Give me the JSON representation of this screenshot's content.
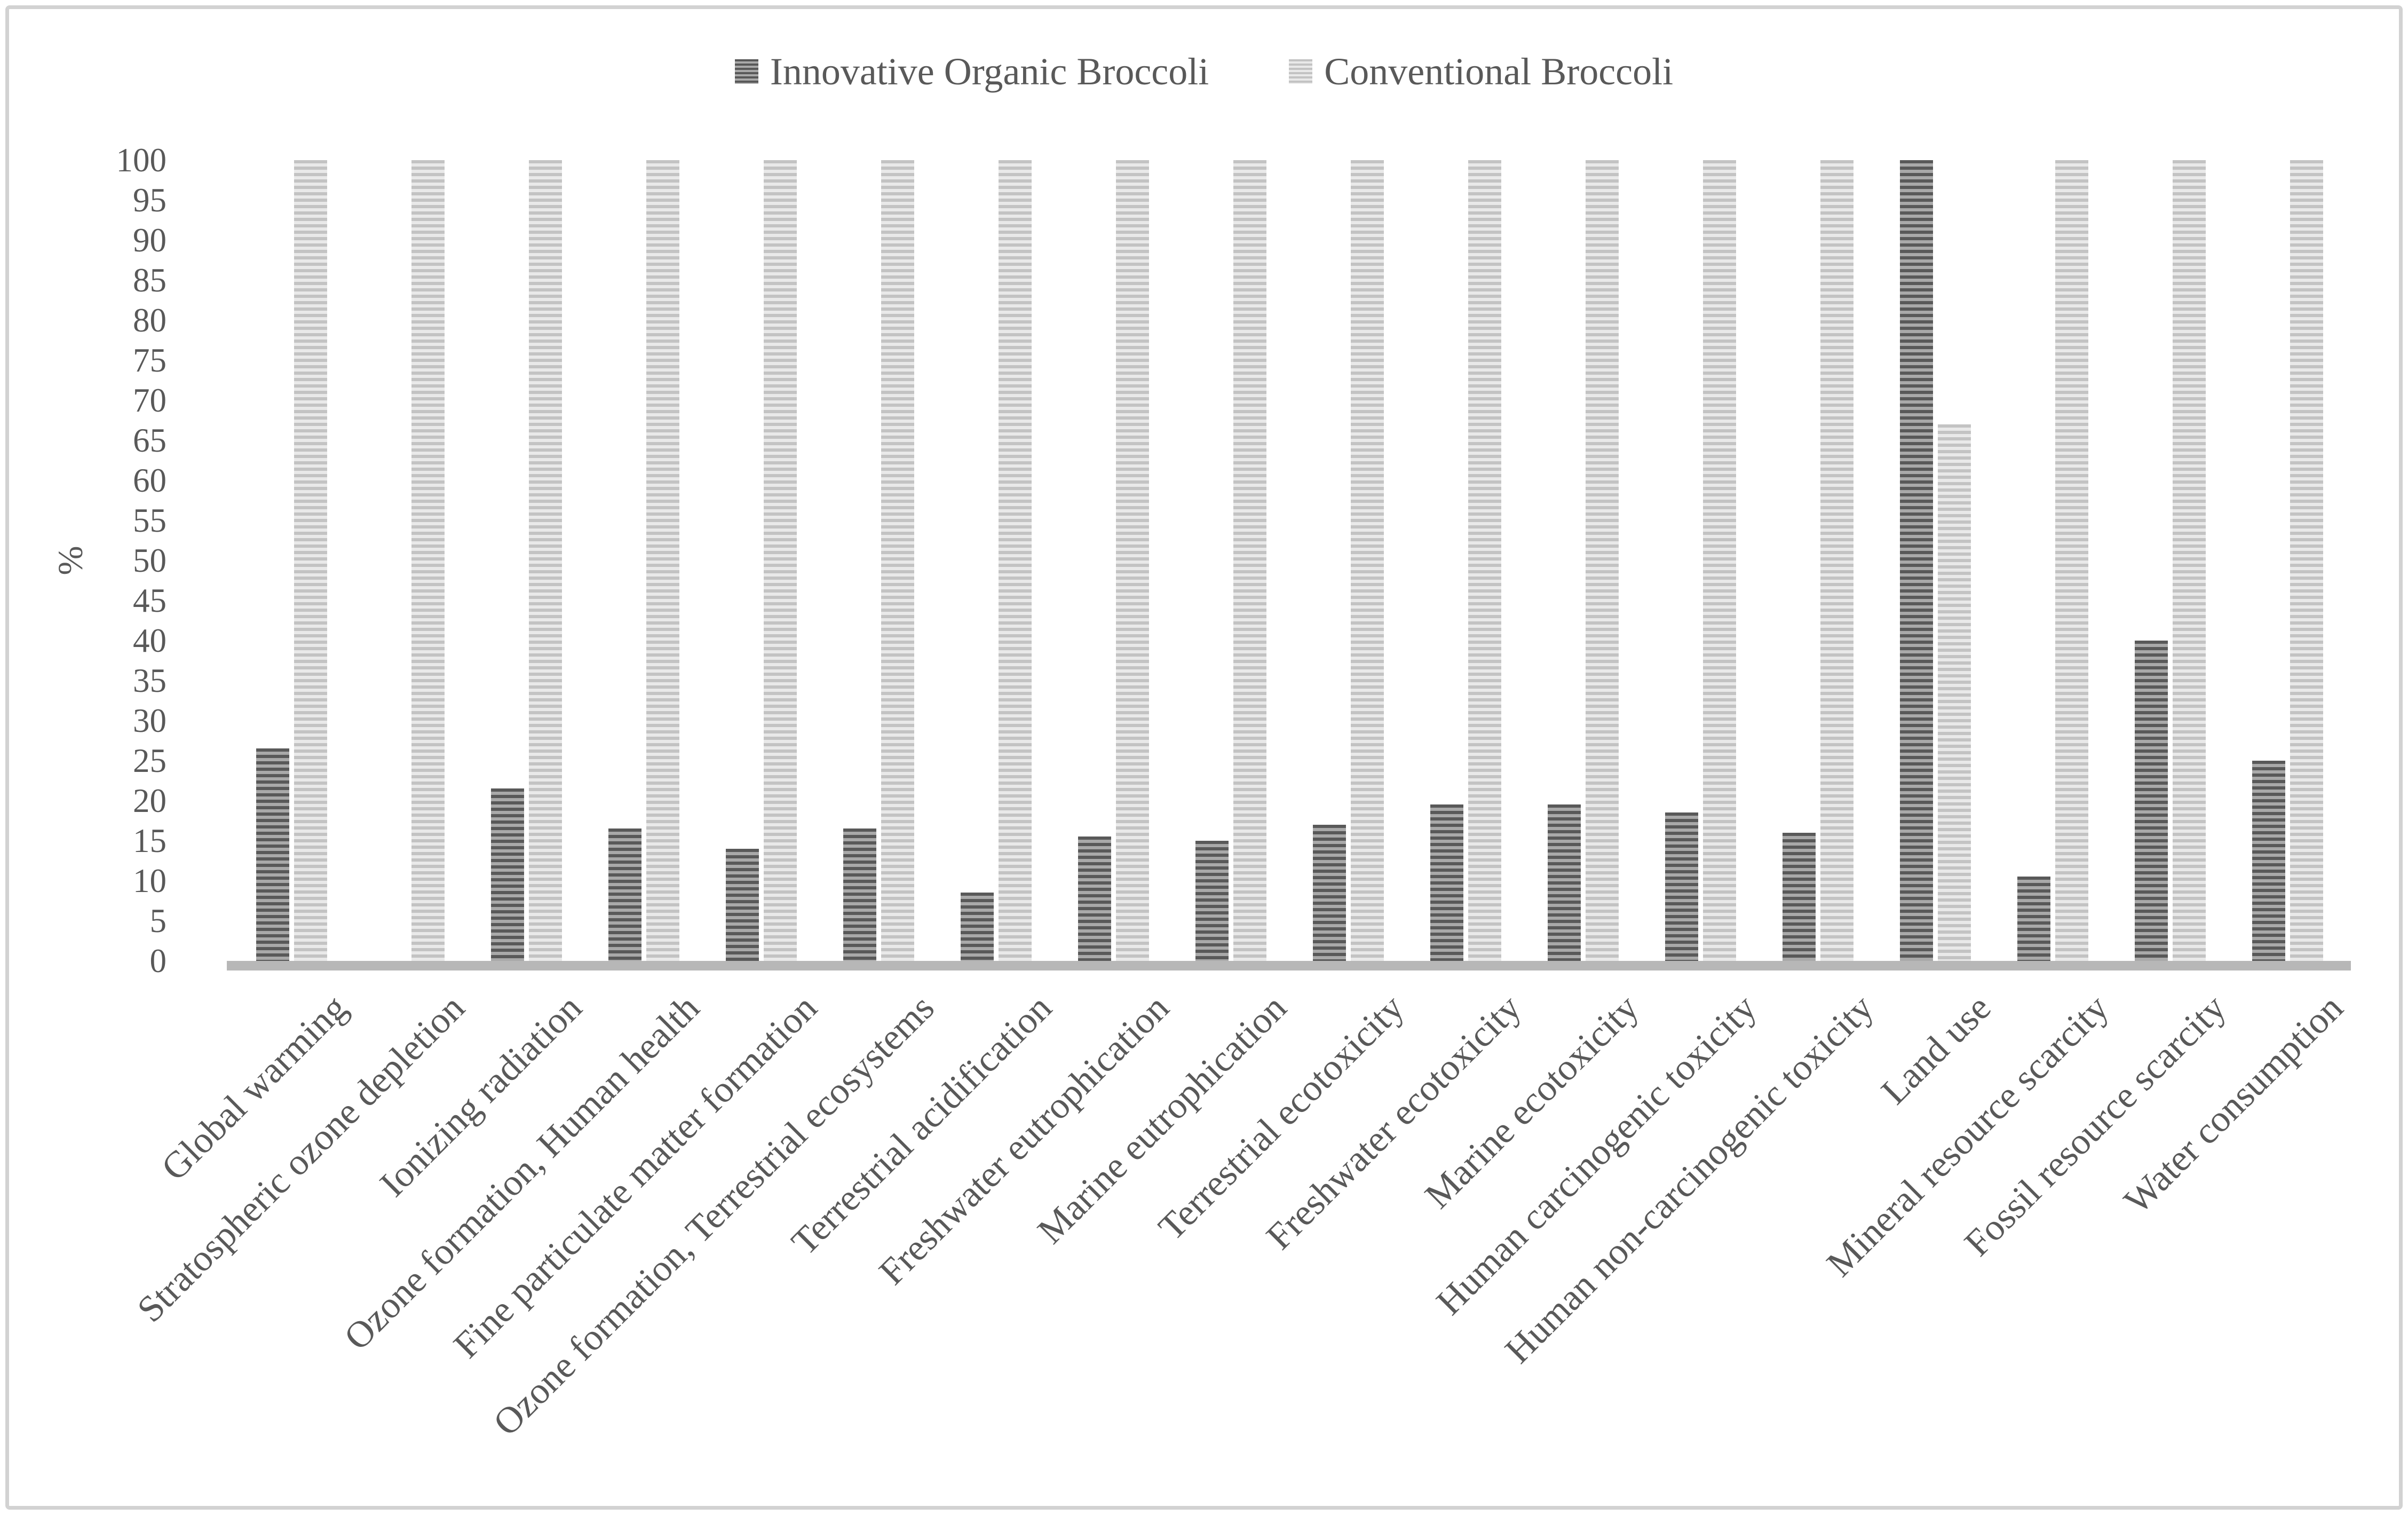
{
  "chart_data": {
    "type": "bar",
    "title": "",
    "categories": [
      "Global warming",
      "Stratospheric ozone depletion",
      "Ionizing radiation",
      "Ozone formation, Human health",
      "Fine particulate matter formation",
      "Ozone formation, Terrestrial ecosystems",
      "Terrestrial acidification",
      "Freshwater eutrophication",
      "Marine eutrophication",
      "Terrestrial ecotoxicity",
      "Freshwater ecotoxicity",
      "Marine ecotoxicity",
      "Human carcinogenic toxicity",
      "Human non-carcinogenic toxicity",
      "Land use",
      "Mineral resource scarcity",
      "Fossil resource scarcity",
      "Water consumption"
    ],
    "series": [
      {
        "name": "Innovative Organic Broccoli",
        "values": [
          26.5,
          0,
          21.5,
          16.5,
          14,
          16.5,
          8.5,
          15.5,
          15,
          17,
          19.5,
          19.5,
          18.5,
          16,
          100,
          10.5,
          40,
          25
        ]
      },
      {
        "name": "Conventional Broccoli",
        "values": [
          100,
          100,
          100,
          100,
          100,
          100,
          100,
          100,
          100,
          100,
          100,
          100,
          100,
          100,
          67,
          100,
          100,
          100
        ]
      }
    ],
    "xlabel": "",
    "ylabel": "%",
    "ylim": [
      0,
      100
    ],
    "ytick_step": 5,
    "grid": false,
    "legend_position": "top",
    "colors": {
      "series1_stripes": [
        "#595959",
        "#a9a9a9"
      ],
      "series2_stripes": [
        "#c3c3c3",
        "#e9e9e9"
      ],
      "axis_line": "#b7b7b7",
      "text": "#595959",
      "border": "#d2d2d2"
    }
  }
}
